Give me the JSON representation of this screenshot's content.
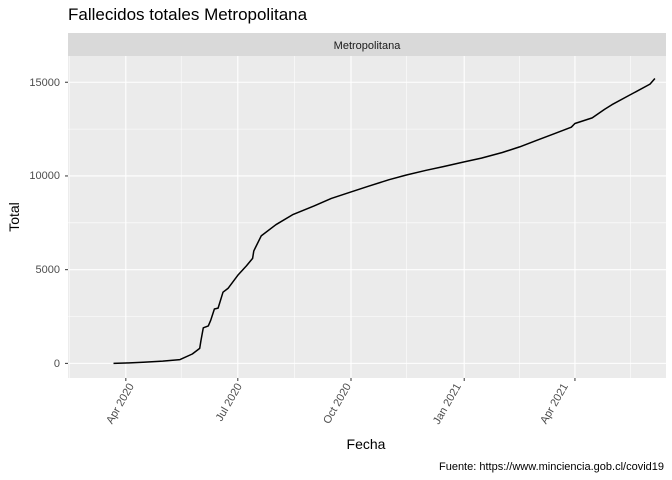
{
  "chart_data": {
    "type": "line",
    "title": "Fallecidos totales Metropolitana",
    "facet_label": "Metropolitana",
    "xlabel": "Fecha",
    "ylabel": "Total",
    "caption": "Fuente: https://www.minciencia.gob.cl/covid19",
    "x_ticks": [
      "Apr 2020",
      "Jul 2020",
      "Oct 2020",
      "Jan 2021",
      "Apr 2021"
    ],
    "y_ticks": [
      "0",
      "5000",
      "10000",
      "15000"
    ],
    "xlim": [
      "2020-02-14",
      "2021-06-14"
    ],
    "ylim": [
      -780,
      16400
    ],
    "grid": true,
    "colors": {
      "panel": "#ebebeb",
      "strip": "#d9d9d9",
      "grid": "#ffffff",
      "line": "#000000"
    },
    "series": [
      {
        "x": [
          "2020-03-22",
          "2020-04-01",
          "2020-04-15",
          "2020-05-01",
          "2020-05-15",
          "2020-05-25",
          "2020-05-31",
          "2020-06-01",
          "2020-06-03",
          "2020-06-07",
          "2020-06-09",
          "2020-06-12",
          "2020-06-15",
          "2020-06-19",
          "2020-06-23",
          "2020-07-01",
          "2020-07-08",
          "2020-07-13",
          "2020-07-14",
          "2020-07-20",
          "2020-08-01",
          "2020-08-15",
          "2020-09-01",
          "2020-09-15",
          "2020-10-01",
          "2020-10-15",
          "2020-11-01",
          "2020-11-15",
          "2020-12-01",
          "2020-12-15",
          "2021-01-01",
          "2021-01-15",
          "2021-02-01",
          "2021-02-15",
          "2021-03-01",
          "2021-03-15",
          "2021-03-29",
          "2021-04-01",
          "2021-04-15",
          "2021-04-25",
          "2021-05-01",
          "2021-05-15",
          "2021-06-01",
          "2021-06-05"
        ],
        "y": [
          0,
          20,
          60,
          120,
          200,
          500,
          800,
          1200,
          1900,
          2000,
          2300,
          2900,
          2950,
          3800,
          4000,
          4700,
          5200,
          5600,
          6000,
          6800,
          7400,
          7950,
          8400,
          8800,
          9150,
          9450,
          9800,
          10050,
          10300,
          10500,
          10750,
          10950,
          11250,
          11550,
          11900,
          12250,
          12600,
          12800,
          13100,
          13550,
          13800,
          14300,
          14900,
          15200
        ]
      }
    ]
  }
}
